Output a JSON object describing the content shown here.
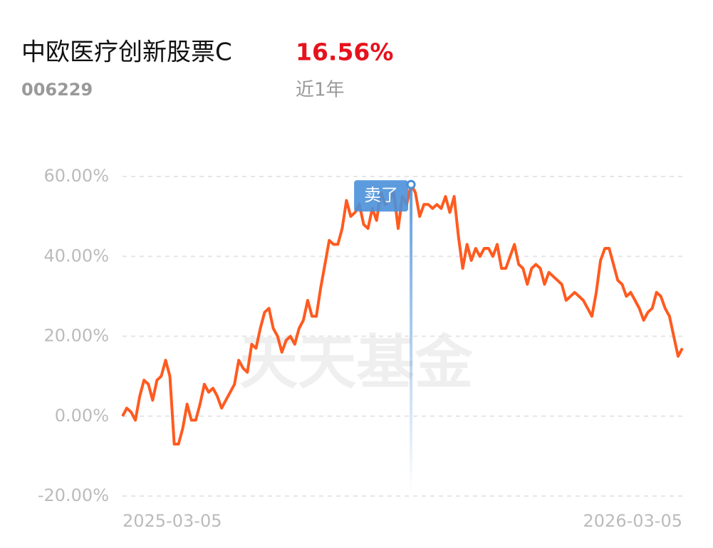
{
  "summary": {
    "fund_name": "中欧医疗创新股票C",
    "code": "006229",
    "return": "16.56%",
    "period": "近1年"
  },
  "chart_data": {
    "type": "line",
    "watermark": "天天基金",
    "categories": [
      "2025-03-05",
      null,
      null,
      null,
      null,
      null,
      null,
      null,
      null,
      null,
      null,
      null,
      null,
      null,
      null,
      null,
      null,
      null,
      null,
      null,
      null,
      null,
      null,
      null,
      null,
      null,
      null,
      null,
      null,
      null,
      null,
      null,
      null,
      null,
      null,
      null,
      null,
      null,
      null,
      null,
      null,
      null,
      null,
      null,
      null,
      null,
      null,
      null,
      null,
      null,
      null,
      null,
      null,
      null,
      null,
      null,
      null,
      null,
      null,
      null,
      null,
      null,
      null,
      null,
      null,
      null,
      null,
      null,
      null,
      null,
      null,
      null,
      null,
      null,
      null,
      null,
      null,
      null,
      null,
      null,
      null,
      null,
      null,
      null,
      null,
      null,
      null,
      null,
      null,
      null,
      null,
      null,
      null,
      null,
      null,
      null,
      null,
      null,
      null,
      null,
      null,
      null,
      null,
      null,
      null,
      null,
      null,
      null,
      null,
      null,
      null,
      null,
      null,
      null,
      null,
      null,
      null,
      null,
      null,
      null,
      null,
      null,
      null,
      null,
      null,
      null,
      null,
      null,
      null,
      null,
      "2026-03-05"
    ],
    "series": [
      {
        "color": "#ff5a1f",
        "values": [
          0,
          2,
          1,
          -1,
          5,
          9,
          8,
          4,
          9,
          10,
          14,
          10,
          -7,
          -7,
          -3,
          3,
          -1,
          -1,
          3,
          8,
          6,
          7,
          5,
          2,
          4,
          6,
          8,
          14,
          12,
          11,
          18,
          17,
          22,
          26,
          27,
          22,
          20,
          16,
          19,
          20,
          18,
          22,
          24,
          29,
          25,
          25,
          32,
          38,
          44,
          43,
          43,
          47,
          54,
          50,
          51,
          53,
          48,
          47,
          52,
          49,
          56,
          53,
          54,
          56,
          47,
          55,
          53,
          58,
          56,
          50,
          53,
          53,
          52,
          53,
          52,
          55,
          51,
          55,
          45,
          37,
          43,
          39,
          42,
          40,
          42,
          42,
          40,
          43,
          37,
          37,
          40,
          43,
          38,
          37,
          33,
          37,
          38,
          37,
          33,
          36,
          35,
          34,
          33,
          29,
          30,
          31,
          30,
          29,
          27,
          25,
          31,
          39,
          42,
          42,
          38,
          34,
          33,
          30,
          31,
          29,
          27,
          24,
          26,
          27,
          31,
          30,
          27,
          25,
          20,
          15,
          17
        ]
      }
    ],
    "annotations": [
      {
        "text": "卖了",
        "at": 67,
        "color": "#4a90d9"
      }
    ],
    "ylim": [
      -20,
      60
    ],
    "yticks": [
      {
        "value": -20,
        "label": "-20.00%"
      },
      {
        "value": 0,
        "label": "0.00%"
      },
      {
        "value": 20,
        "label": "20.00%"
      },
      {
        "value": 40,
        "label": "40.00%"
      },
      {
        "value": 60,
        "label": "60.00%"
      }
    ],
    "grid": true
  }
}
